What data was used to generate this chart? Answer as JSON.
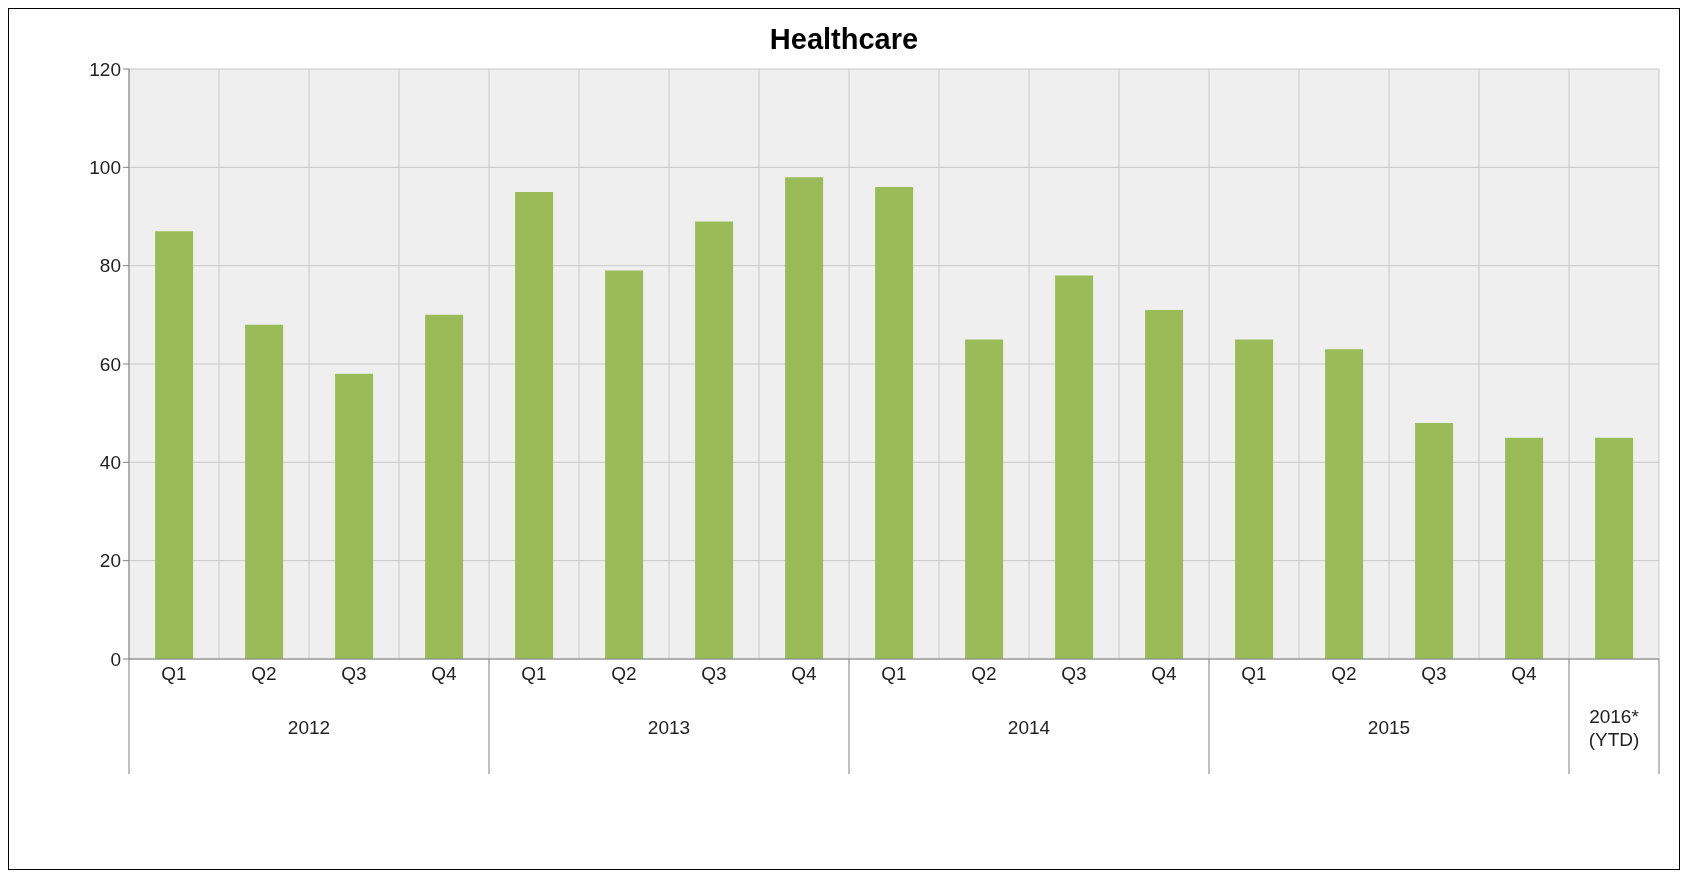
{
  "chart_data": {
    "type": "bar",
    "title": "Healthcare",
    "categories": [
      "Q1",
      "Q2",
      "Q3",
      "Q4",
      "Q1",
      "Q2",
      "Q3",
      "Q4",
      "Q1",
      "Q2",
      "Q3",
      "Q4",
      "Q1",
      "Q2",
      "Q3",
      "Q4",
      null
    ],
    "annotations": [
      "2012",
      "2013",
      "2014",
      "2015",
      "2016*\n(YTD)"
    ],
    "values": [
      87,
      68,
      58,
      70,
      95,
      79,
      89,
      98,
      96,
      65,
      78,
      71,
      65,
      63,
      48,
      45,
      45
    ],
    "color": "#9bbb59",
    "ylim": [
      0,
      120
    ],
    "yticks": [
      0,
      20,
      40,
      60,
      80,
      100,
      120
    ],
    "grid": true
  }
}
